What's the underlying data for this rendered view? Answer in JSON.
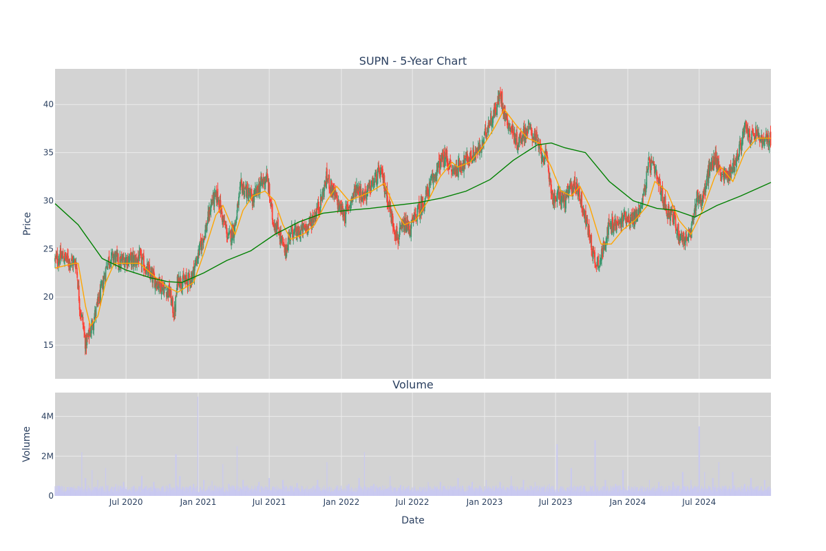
{
  "chart_data": {
    "type": "candlestick",
    "title": "SUPN - 5-Year Chart",
    "subplot_title": "Volume",
    "xlabel": "Date",
    "price_panel": {
      "ylabel": "Price",
      "ylim": [
        11.5,
        43.7
      ],
      "yticks": [
        15,
        20,
        25,
        30,
        35,
        40
      ],
      "grid": true
    },
    "volume_panel": {
      "ylabel": "Volume",
      "ylim": [
        0,
        5200000
      ],
      "yticks": [
        0,
        2000000,
        4000000
      ],
      "ytick_labels": [
        "0",
        "2M",
        "4M"
      ],
      "grid": true
    },
    "x_range": [
      "2020-01-02",
      "2024-12-31"
    ],
    "x_ticks": [
      "2020-07-01",
      "2021-01-01",
      "2021-07-01",
      "2022-01-01",
      "2022-07-01",
      "2023-01-01",
      "2023-07-01",
      "2024-01-01",
      "2024-07-01"
    ],
    "x_tick_labels": [
      "Jul 2020",
      "Jan 2021",
      "Jul 2021",
      "Jan 2022",
      "Jul 2022",
      "Jan 2023",
      "Jul 2023",
      "Jan 2024",
      "Jul 2024"
    ],
    "colors": {
      "up": "#3d9970",
      "down": "#ff4136",
      "ma_short": "#ffa500",
      "ma_long": "#008000",
      "volume": "#c9c9f0",
      "plot_bg": "#d3d3d3",
      "grid": "#ebebeb"
    },
    "close_series": [
      [
        "2020-01-02",
        23.8
      ],
      [
        "2020-01-20",
        24.2
      ],
      [
        "2020-02-10",
        23.7
      ],
      [
        "2020-02-25",
        23.5
      ],
      [
        "2020-03-05",
        19.0
      ],
      [
        "2020-03-12",
        17.5
      ],
      [
        "2020-03-20",
        15.0
      ],
      [
        "2020-04-01",
        16.5
      ],
      [
        "2020-04-15",
        18.5
      ],
      [
        "2020-05-01",
        21.0
      ],
      [
        "2020-05-15",
        23.8
      ],
      [
        "2020-06-01",
        24.2
      ],
      [
        "2020-06-15",
        23.5
      ],
      [
        "2020-07-01",
        24.0
      ],
      [
        "2020-07-20",
        23.8
      ],
      [
        "2020-08-05",
        24.0
      ],
      [
        "2020-08-20",
        23.0
      ],
      [
        "2020-09-05",
        22.0
      ],
      [
        "2020-09-20",
        21.5
      ],
      [
        "2020-10-05",
        21.0
      ],
      [
        "2020-10-20",
        20.5
      ],
      [
        "2020-11-01",
        18.0
      ],
      [
        "2020-11-10",
        22.0
      ],
      [
        "2020-11-25",
        21.5
      ],
      [
        "2020-12-15",
        22.0
      ],
      [
        "2021-01-05",
        25.0
      ],
      [
        "2021-01-20",
        27.0
      ],
      [
        "2021-02-05",
        30.0
      ],
      [
        "2021-02-20",
        30.5
      ],
      [
        "2021-03-05",
        28.0
      ],
      [
        "2021-03-20",
        26.0
      ],
      [
        "2021-04-05",
        27.5
      ],
      [
        "2021-04-20",
        31.5
      ],
      [
        "2021-05-05",
        31.0
      ],
      [
        "2021-05-20",
        30.0
      ],
      [
        "2021-06-05",
        31.5
      ],
      [
        "2021-06-25",
        32.5
      ],
      [
        "2021-07-10",
        28.0
      ],
      [
        "2021-07-25",
        27.0
      ],
      [
        "2021-08-10",
        24.5
      ],
      [
        "2021-08-25",
        27.0
      ],
      [
        "2021-09-10",
        26.5
      ],
      [
        "2021-09-25",
        27.0
      ],
      [
        "2021-10-10",
        27.5
      ],
      [
        "2021-10-25",
        28.5
      ],
      [
        "2021-11-10",
        30.0
      ],
      [
        "2021-11-25",
        32.5
      ],
      [
        "2021-12-10",
        31.0
      ],
      [
        "2021-12-25",
        29.5
      ],
      [
        "2022-01-10",
        28.5
      ],
      [
        "2022-01-25",
        30.0
      ],
      [
        "2022-02-10",
        31.5
      ],
      [
        "2022-02-25",
        30.5
      ],
      [
        "2022-03-10",
        31.0
      ],
      [
        "2022-03-25",
        32.0
      ],
      [
        "2022-04-10",
        33.0
      ],
      [
        "2022-04-25",
        31.0
      ],
      [
        "2022-05-10",
        28.0
      ],
      [
        "2022-05-25",
        26.0
      ],
      [
        "2022-06-10",
        27.5
      ],
      [
        "2022-06-25",
        27.0
      ],
      [
        "2022-07-10",
        28.5
      ],
      [
        "2022-07-25",
        29.5
      ],
      [
        "2022-08-10",
        31.0
      ],
      [
        "2022-08-25",
        32.5
      ],
      [
        "2022-09-10",
        34.0
      ],
      [
        "2022-09-25",
        34.5
      ],
      [
        "2022-10-10",
        33.0
      ],
      [
        "2022-10-25",
        33.5
      ],
      [
        "2022-11-10",
        34.0
      ],
      [
        "2022-11-25",
        34.5
      ],
      [
        "2022-12-10",
        35.0
      ],
      [
        "2022-12-25",
        35.5
      ],
      [
        "2023-01-10",
        38.0
      ],
      [
        "2023-01-25",
        39.0
      ],
      [
        "2023-02-10",
        41.0
      ],
      [
        "2023-02-25",
        38.5
      ],
      [
        "2023-03-10",
        37.5
      ],
      [
        "2023-03-25",
        36.0
      ],
      [
        "2023-04-10",
        37.0
      ],
      [
        "2023-04-25",
        37.5
      ],
      [
        "2023-05-10",
        36.5
      ],
      [
        "2023-05-25",
        35.0
      ],
      [
        "2023-06-10",
        34.0
      ],
      [
        "2023-06-25",
        30.0
      ],
      [
        "2023-07-10",
        30.5
      ],
      [
        "2023-07-25",
        30.0
      ],
      [
        "2023-08-10",
        31.5
      ],
      [
        "2023-08-25",
        31.5
      ],
      [
        "2023-09-10",
        29.0
      ],
      [
        "2023-09-25",
        26.5
      ],
      [
        "2023-10-10",
        23.5
      ],
      [
        "2023-10-25",
        24.0
      ],
      [
        "2023-11-10",
        27.0
      ],
      [
        "2023-11-25",
        27.5
      ],
      [
        "2023-12-10",
        27.5
      ],
      [
        "2023-12-25",
        28.5
      ],
      [
        "2024-01-10",
        28.0
      ],
      [
        "2024-01-25",
        28.5
      ],
      [
        "2024-02-10",
        30.5
      ],
      [
        "2024-02-25",
        34.0
      ],
      [
        "2024-03-10",
        33.0
      ],
      [
        "2024-03-25",
        31.0
      ],
      [
        "2024-04-10",
        29.0
      ],
      [
        "2024-04-25",
        28.5
      ],
      [
        "2024-05-10",
        26.5
      ],
      [
        "2024-05-25",
        26.0
      ],
      [
        "2024-06-10",
        26.5
      ],
      [
        "2024-06-25",
        30.5
      ],
      [
        "2024-07-10",
        30.0
      ],
      [
        "2024-07-25",
        33.0
      ],
      [
        "2024-08-10",
        34.5
      ],
      [
        "2024-08-25",
        33.0
      ],
      [
        "2024-09-10",
        32.5
      ],
      [
        "2024-09-25",
        33.5
      ],
      [
        "2024-10-10",
        35.0
      ],
      [
        "2024-10-25",
        37.5
      ],
      [
        "2024-11-10",
        36.5
      ],
      [
        "2024-11-25",
        37.0
      ],
      [
        "2024-12-10",
        36.0
      ],
      [
        "2024-12-31",
        36.5
      ]
    ],
    "ma_short_series": [
      [
        "2020-01-02",
        23.0
      ],
      [
        "2020-02-20",
        23.5
      ],
      [
        "2020-03-01",
        23.5
      ],
      [
        "2020-03-20",
        19.0
      ],
      [
        "2020-04-01",
        17.0
      ],
      [
        "2020-04-20",
        18.0
      ],
      [
        "2020-05-10",
        21.5
      ],
      [
        "2020-06-01",
        23.5
      ],
      [
        "2020-07-01",
        23.5
      ],
      [
        "2020-08-05",
        23.5
      ],
      [
        "2020-09-01",
        22.5
      ],
      [
        "2020-10-15",
        21.0
      ],
      [
        "2020-11-10",
        20.5
      ],
      [
        "2020-12-20",
        21.5
      ],
      [
        "2021-01-15",
        24.5
      ],
      [
        "2021-02-15",
        28.5
      ],
      [
        "2021-03-05",
        29.5
      ],
      [
        "2021-04-05",
        26.5
      ],
      [
        "2021-04-25",
        29.0
      ],
      [
        "2021-05-20",
        30.5
      ],
      [
        "2021-06-20",
        31.0
      ],
      [
        "2021-07-15",
        30.0
      ],
      [
        "2021-08-05",
        27.5
      ],
      [
        "2021-08-25",
        26.0
      ],
      [
        "2021-09-25",
        26.5
      ],
      [
        "2021-10-25",
        27.5
      ],
      [
        "2021-11-25",
        30.0
      ],
      [
        "2021-12-20",
        31.5
      ],
      [
        "2022-01-20",
        30.0
      ],
      [
        "2022-02-20",
        30.5
      ],
      [
        "2022-03-20",
        31.0
      ],
      [
        "2022-04-20",
        31.8
      ],
      [
        "2022-05-20",
        29.0
      ],
      [
        "2022-06-10",
        27.5
      ],
      [
        "2022-07-10",
        28.0
      ],
      [
        "2022-08-10",
        30.0
      ],
      [
        "2022-09-10",
        32.5
      ],
      [
        "2022-10-10",
        34.0
      ],
      [
        "2022-10-25",
        33.5
      ],
      [
        "2022-11-25",
        34.0
      ],
      [
        "2022-12-25",
        35.5
      ],
      [
        "2023-01-25",
        37.5
      ],
      [
        "2023-02-20",
        39.5
      ],
      [
        "2023-03-20",
        38.0
      ],
      [
        "2023-04-20",
        36.5
      ],
      [
        "2023-05-20",
        36.0
      ],
      [
        "2023-06-20",
        33.5
      ],
      [
        "2023-07-15",
        31.0
      ],
      [
        "2023-08-10",
        30.5
      ],
      [
        "2023-09-01",
        31.5
      ],
      [
        "2023-09-25",
        29.5
      ],
      [
        "2023-10-25",
        25.5
      ],
      [
        "2023-11-20",
        25.5
      ],
      [
        "2023-12-20",
        27.0
      ],
      [
        "2024-01-20",
        28.0
      ],
      [
        "2024-02-20",
        29.5
      ],
      [
        "2024-03-10",
        32.0
      ],
      [
        "2024-04-10",
        31.0
      ],
      [
        "2024-05-10",
        28.0
      ],
      [
        "2024-06-10",
        26.5
      ],
      [
        "2024-07-10",
        29.0
      ],
      [
        "2024-08-10",
        32.5
      ],
      [
        "2024-08-25",
        33.5
      ],
      [
        "2024-09-25",
        32.0
      ],
      [
        "2024-10-25",
        35.0
      ],
      [
        "2024-11-25",
        36.5
      ],
      [
        "2024-12-31",
        36.5
      ]
    ],
    "ma_long_series": [
      [
        "2020-01-02",
        29.7
      ],
      [
        "2020-03-01",
        27.5
      ],
      [
        "2020-05-01",
        24.0
      ],
      [
        "2020-07-01",
        22.8
      ],
      [
        "2020-09-01",
        22.0
      ],
      [
        "2020-10-15",
        21.6
      ],
      [
        "2020-11-20",
        21.5
      ],
      [
        "2021-01-15",
        22.5
      ],
      [
        "2021-03-15",
        23.8
      ],
      [
        "2021-05-15",
        24.8
      ],
      [
        "2021-07-15",
        26.5
      ],
      [
        "2021-09-15",
        27.8
      ],
      [
        "2021-11-15",
        28.7
      ],
      [
        "2022-01-15",
        29.0
      ],
      [
        "2022-03-15",
        29.2
      ],
      [
        "2022-05-15",
        29.5
      ],
      [
        "2022-07-15",
        29.8
      ],
      [
        "2022-09-15",
        30.3
      ],
      [
        "2022-11-15",
        31.0
      ],
      [
        "2023-01-15",
        32.2
      ],
      [
        "2023-03-15",
        34.2
      ],
      [
        "2023-05-15",
        35.8
      ],
      [
        "2023-06-20",
        36.0
      ],
      [
        "2023-07-25",
        35.5
      ],
      [
        "2023-09-15",
        35.0
      ],
      [
        "2023-11-15",
        32.0
      ],
      [
        "2024-01-15",
        30.0
      ],
      [
        "2024-03-15",
        29.2
      ],
      [
        "2024-05-01",
        29.0
      ],
      [
        "2024-06-20",
        28.3
      ],
      [
        "2024-08-15",
        29.5
      ],
      [
        "2024-10-15",
        30.5
      ],
      [
        "2024-12-31",
        31.9
      ]
    ],
    "volume_spikes": [
      [
        "2020-01-10",
        500000
      ],
      [
        "2020-01-25",
        350000
      ],
      [
        "2020-02-15",
        400000
      ],
      [
        "2020-03-10",
        2200000
      ],
      [
        "2020-03-20",
        900000
      ],
      [
        "2020-04-05",
        1300000
      ],
      [
        "2020-04-20",
        800000
      ],
      [
        "2020-05-10",
        1400000
      ],
      [
        "2020-06-05",
        600000
      ],
      [
        "2020-06-25",
        700000
      ],
      [
        "2020-07-20",
        500000
      ],
      [
        "2020-08-10",
        1000000
      ],
      [
        "2020-09-10",
        700000
      ],
      [
        "2020-10-20",
        600000
      ],
      [
        "2020-11-05",
        2100000
      ],
      [
        "2020-11-15",
        1000000
      ],
      [
        "2020-12-20",
        600000
      ],
      [
        "2020-12-31",
        5000000
      ],
      [
        "2021-01-15",
        800000
      ],
      [
        "2021-02-05",
        750000
      ],
      [
        "2021-03-05",
        1600000
      ],
      [
        "2021-03-20",
        600000
      ],
      [
        "2021-04-10",
        2500000
      ],
      [
        "2021-04-25",
        800000
      ],
      [
        "2021-06-05",
        700000
      ],
      [
        "2021-07-01",
        900000
      ],
      [
        "2021-08-05",
        800000
      ],
      [
        "2021-09-10",
        650000
      ],
      [
        "2021-11-01",
        800000
      ],
      [
        "2021-11-25",
        1700000
      ],
      [
        "2021-12-20",
        500000
      ],
      [
        "2022-01-20",
        600000
      ],
      [
        "2022-02-15",
        900000
      ],
      [
        "2022-03-01",
        2200000
      ],
      [
        "2022-03-25",
        600000
      ],
      [
        "2022-05-05",
        1000000
      ],
      [
        "2022-06-01",
        550000
      ],
      [
        "2022-07-20",
        450000
      ],
      [
        "2022-08-10",
        700000
      ],
      [
        "2022-09-10",
        700000
      ],
      [
        "2022-10-25",
        900000
      ],
      [
        "2022-12-01",
        700000
      ],
      [
        "2023-01-05",
        800000
      ],
      [
        "2023-02-10",
        700000
      ],
      [
        "2023-03-10",
        1000000
      ],
      [
        "2023-04-10",
        800000
      ],
      [
        "2023-05-10",
        700000
      ],
      [
        "2023-06-15",
        600000
      ],
      [
        "2023-07-05",
        2600000
      ],
      [
        "2023-08-10",
        1400000
      ],
      [
        "2023-09-10",
        500000
      ],
      [
        "2023-10-10",
        2800000
      ],
      [
        "2023-11-05",
        800000
      ],
      [
        "2023-12-01",
        600000
      ],
      [
        "2023-12-20",
        1300000
      ],
      [
        "2024-01-20",
        500000
      ],
      [
        "2024-02-25",
        800000
      ],
      [
        "2024-03-20",
        700000
      ],
      [
        "2024-04-25",
        700000
      ],
      [
        "2024-05-20",
        1200000
      ],
      [
        "2024-06-10",
        800000
      ],
      [
        "2024-07-01",
        3500000
      ],
      [
        "2024-07-15",
        1200000
      ],
      [
        "2024-08-05",
        900000
      ],
      [
        "2024-08-20",
        1700000
      ],
      [
        "2024-09-25",
        1200000
      ],
      [
        "2024-10-25",
        600000
      ],
      [
        "2024-11-10",
        900000
      ],
      [
        "2024-12-15",
        800000
      ]
    ]
  }
}
